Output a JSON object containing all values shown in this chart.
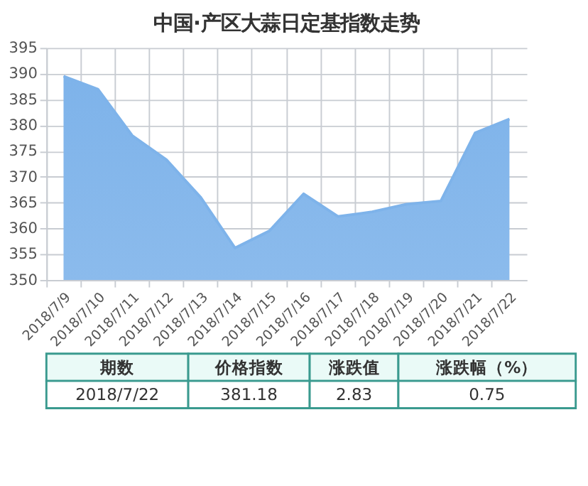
{
  "chart_data": {
    "type": "area",
    "title": "中国·产区大蒜日定基指数走势",
    "categories": [
      "2018/7/9",
      "2018/7/10",
      "2018/7/11",
      "2018/7/12",
      "2018/7/13",
      "2018/7/14",
      "2018/7/15",
      "2018/7/16",
      "2018/7/17",
      "2018/7/18",
      "2018/7/19",
      "2018/7/20",
      "2018/7/21",
      "2018/7/22"
    ],
    "series": [
      {
        "color": "#7eb3ea",
        "values": [
          389.5,
          387.0,
          378.0,
          373.3,
          366.0,
          356.2,
          359.5,
          366.7,
          362.3,
          363.2,
          364.7,
          365.3,
          378.5,
          381.2
        ]
      }
    ],
    "ylim": [
      350,
      395
    ],
    "yticks": [
      350,
      355,
      360,
      365,
      370,
      375,
      380,
      385,
      390,
      395
    ],
    "grid": true,
    "annotations": [
      "期数",
      "价格指数",
      "涨跌值",
      "涨跌幅（%）",
      "2018/7/22",
      "381.18",
      "2.83",
      "0.75"
    ]
  }
}
